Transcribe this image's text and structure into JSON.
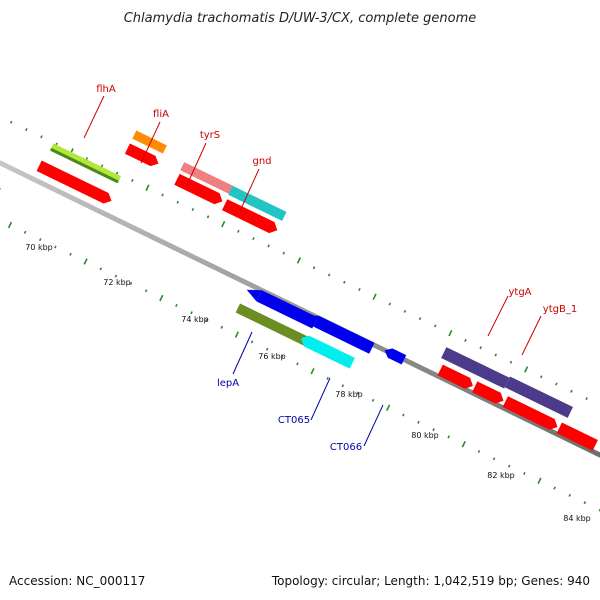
{
  "title": "Chlamydia trachomatis D/UW-3/CX, complete genome",
  "footer": {
    "accession": "Accession: NC_000117",
    "summary": "Topology: circular; Length: 1,042,519 bp; Genes: 940"
  },
  "colors": {
    "forward_label": "#cc0000",
    "reverse_label": "#0000aa",
    "dots": "#2a8a2a",
    "backbone": "#888888"
  },
  "tick_labels": [
    "70 kbp",
    "72 kbp",
    "74 kbp",
    "76 kbp",
    "78 kbp",
    "80 kbp",
    "82 kbp",
    "84 kbp"
  ],
  "forward_genes": [
    "flhA",
    "fliA",
    "tyrS",
    "gnd",
    "ytgA",
    "ytgB_1"
  ],
  "reverse_genes": [
    "lepA",
    "CT065",
    "CT066"
  ]
}
